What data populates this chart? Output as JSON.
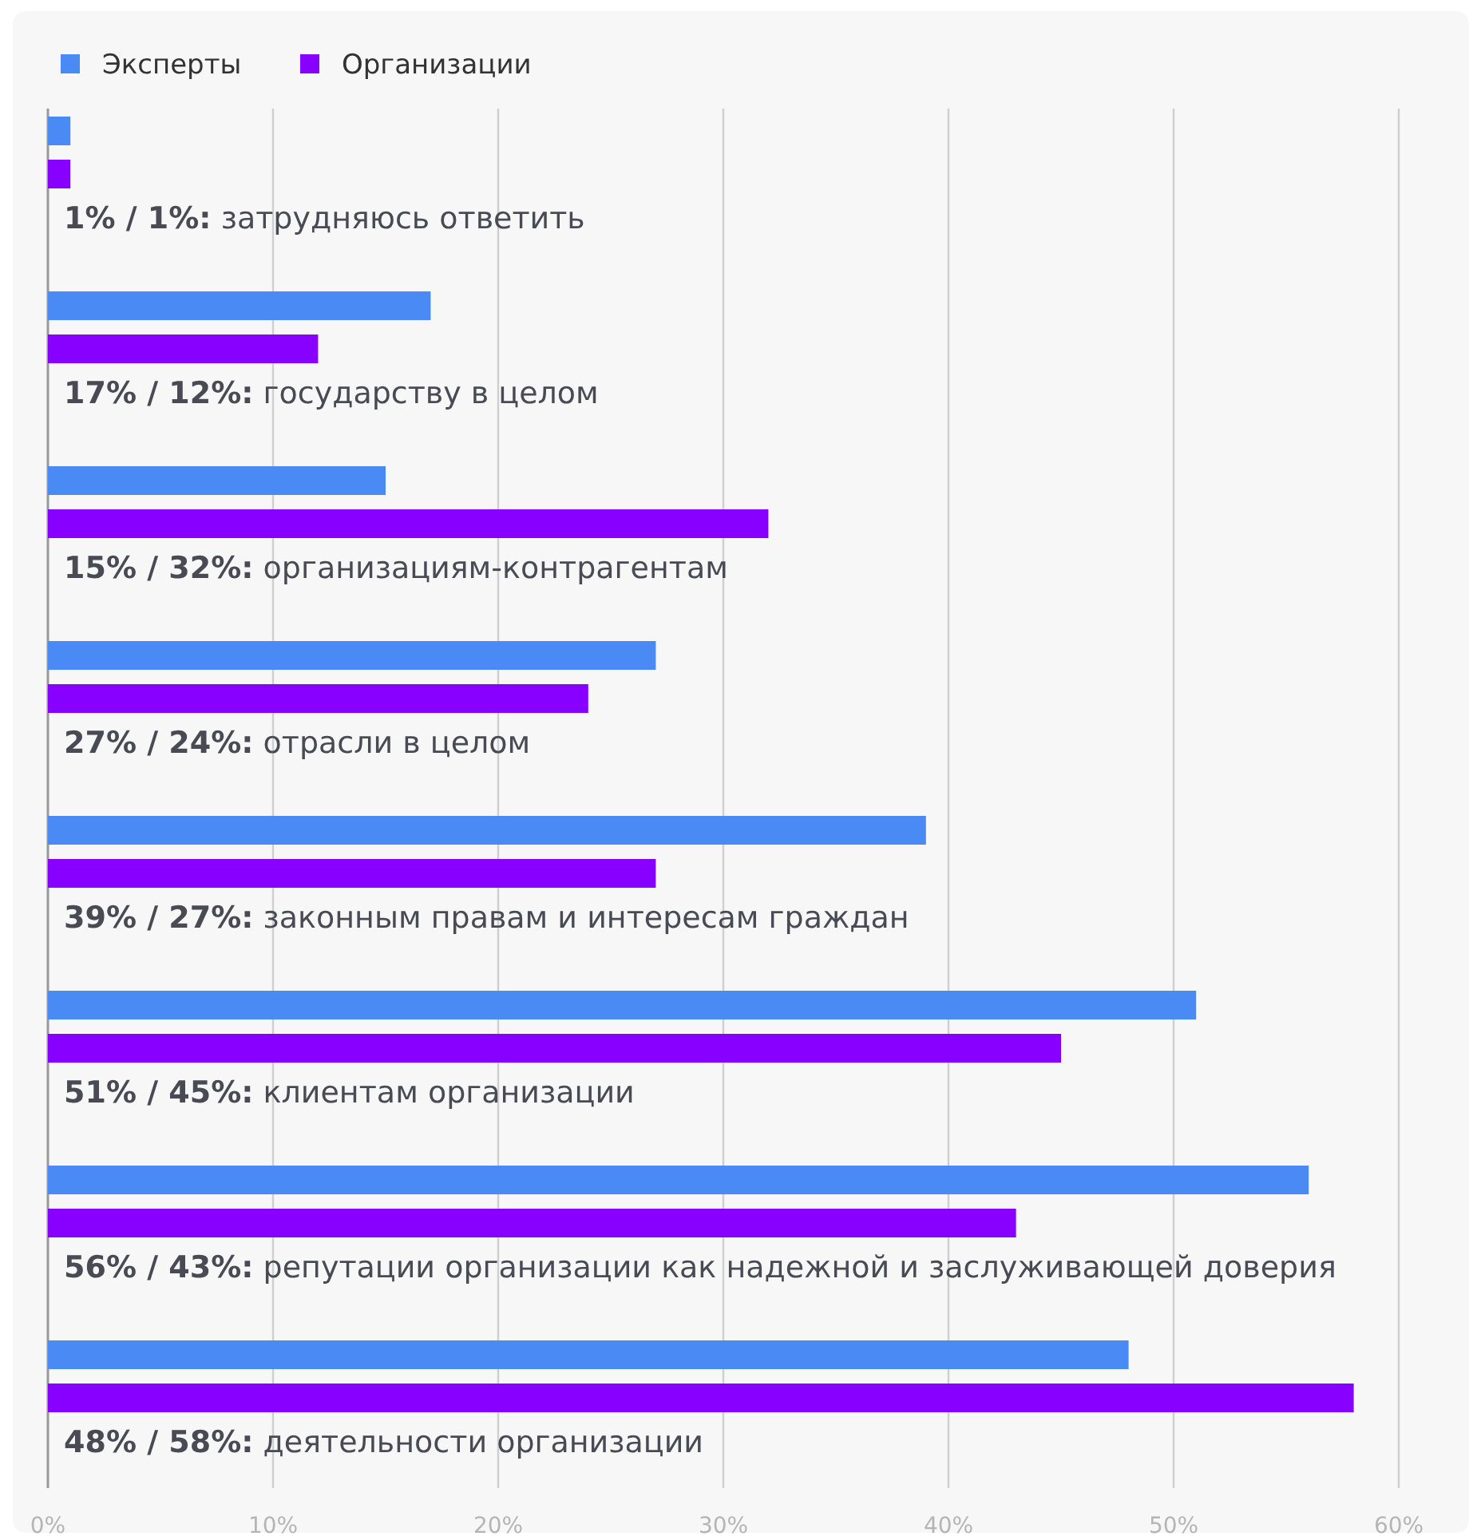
{
  "chart_data": {
    "type": "bar",
    "orientation": "horizontal",
    "categories": [
      "1% / 1%: затрудняюсь ответить",
      "17% / 12%: государству в целом",
      "15% / 32%: организациям-контрагентам",
      "27% / 24%: отрасли в целом",
      "39% / 27%: законным правам и интересам граждан",
      "51% / 45%: клиентам организации",
      "56% / 43%: репутации организации как надежной и заслуживающей доверия",
      "48% / 58%: деятельности организации"
    ],
    "series": [
      {
        "name": "Эксперты",
        "color": "#4a8af4",
        "values": [
          1,
          17,
          15,
          27,
          39,
          51,
          56,
          48
        ]
      },
      {
        "name": "Организации",
        "color": "#8800ff",
        "values": [
          1,
          12,
          32,
          24,
          27,
          45,
          43,
          58
        ]
      }
    ],
    "xlim": [
      0,
      60
    ],
    "xticks": [
      {
        "value": 0,
        "label": "0%"
      },
      {
        "value": 10,
        "label": "10%"
      },
      {
        "value": 20,
        "label": "20%"
      },
      {
        "value": 30,
        "label": "30%"
      },
      {
        "value": 40,
        "label": "40%"
      },
      {
        "value": 50,
        "label": "50%"
      },
      {
        "value": 60,
        "label": "60%"
      }
    ],
    "grid": "x",
    "legend": "top left"
  }
}
